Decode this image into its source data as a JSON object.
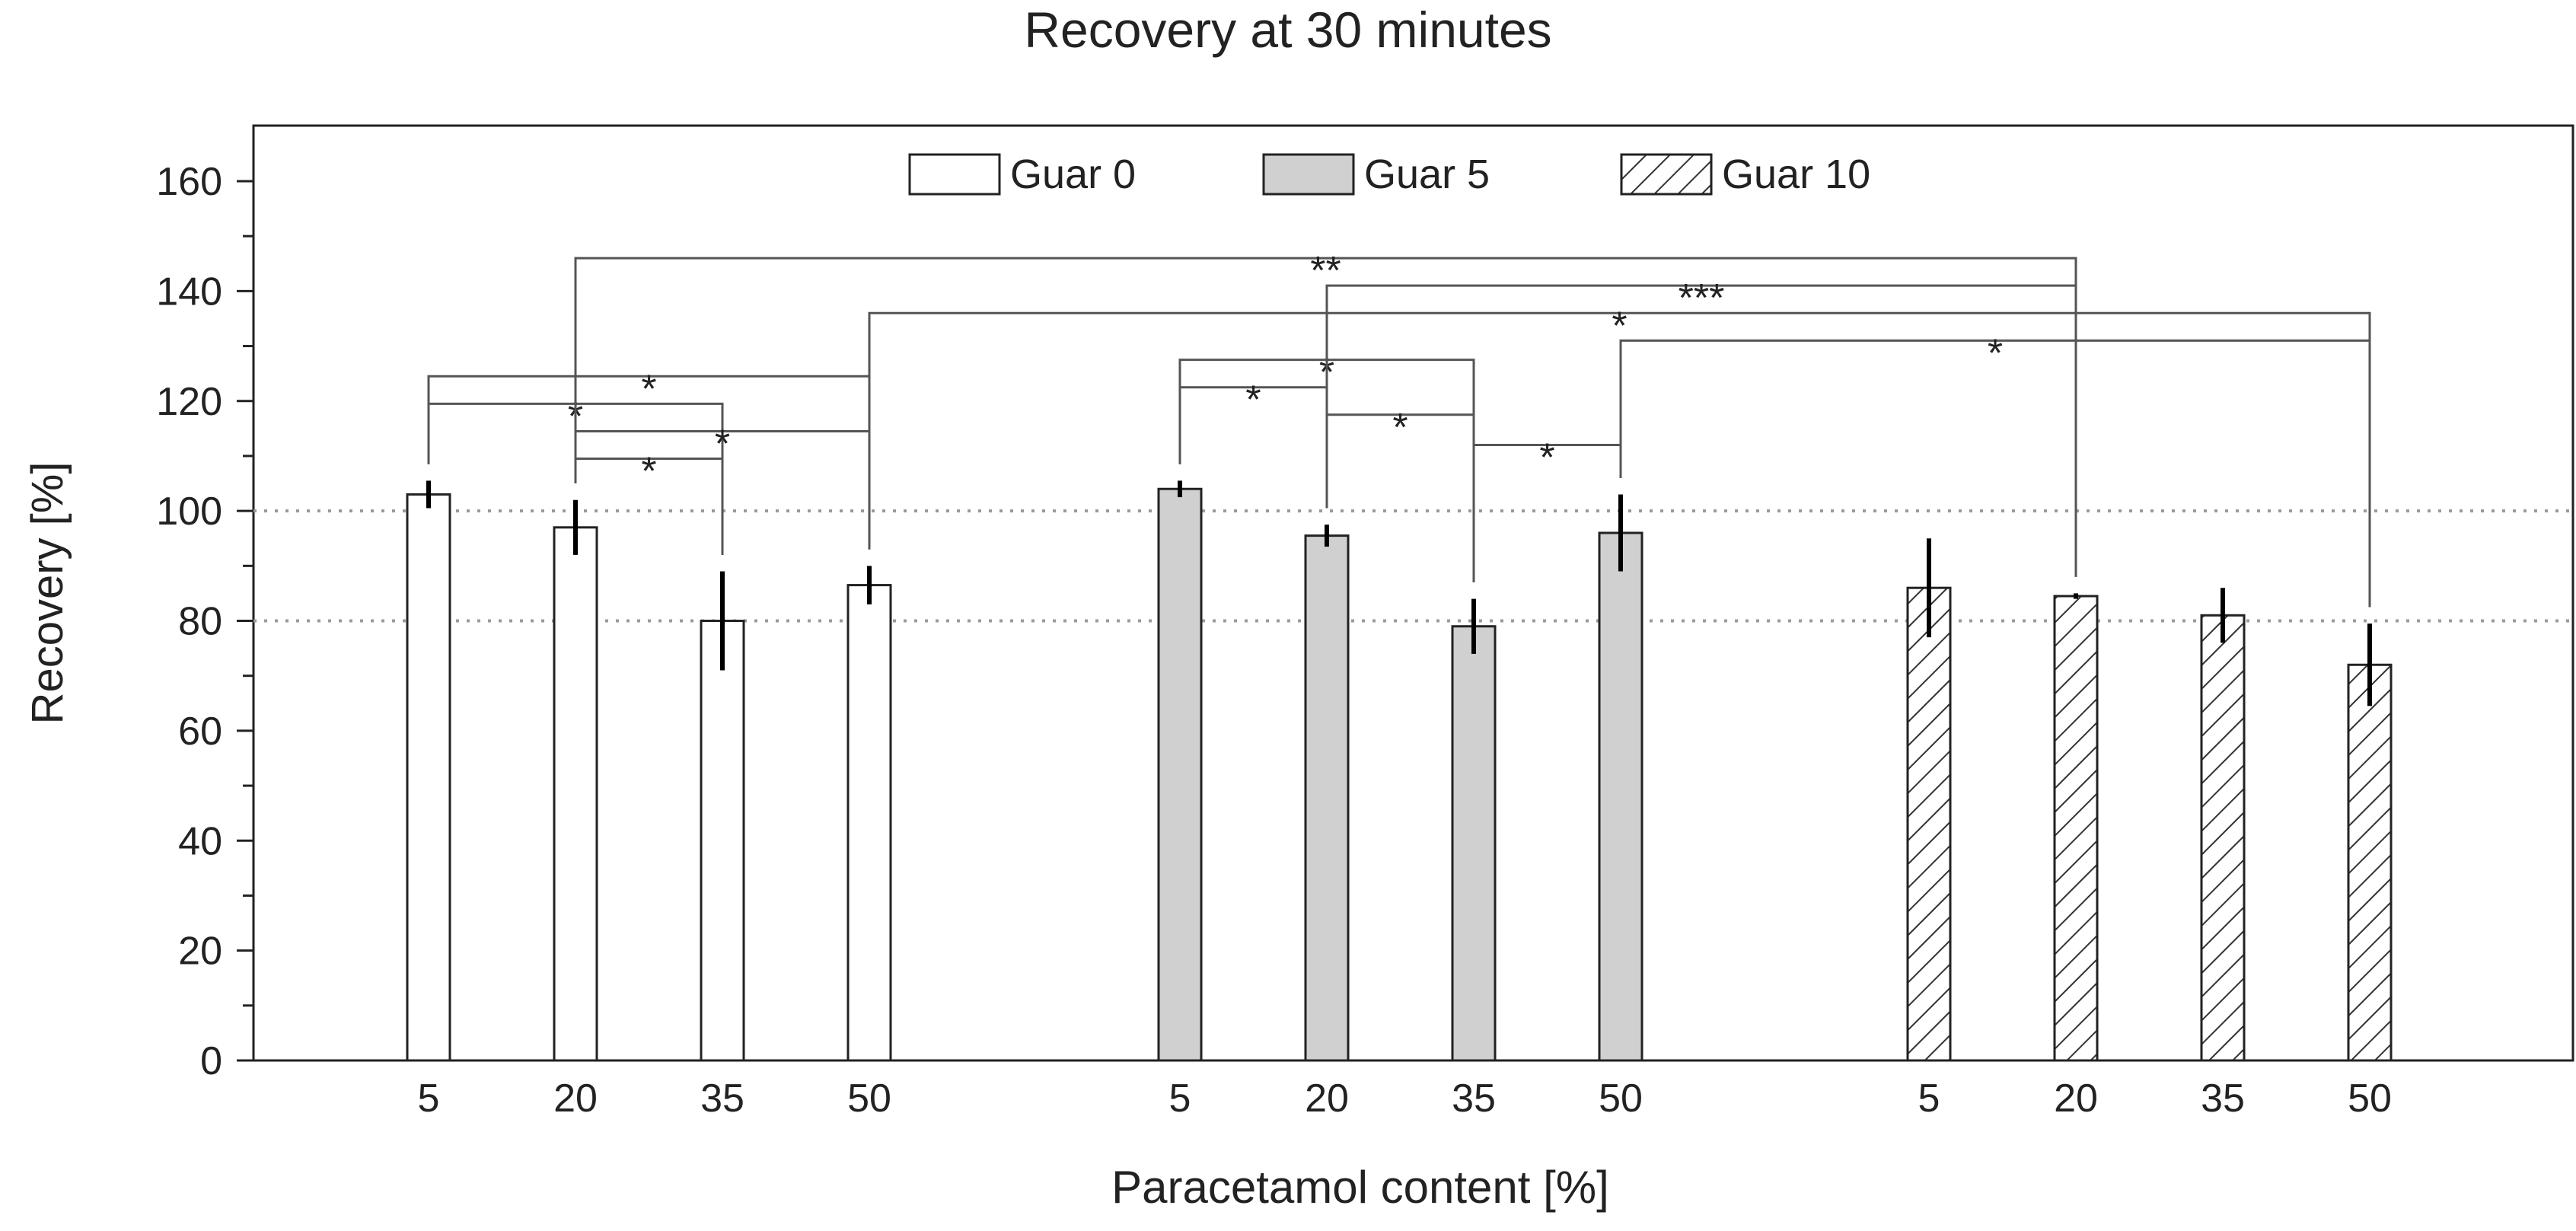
{
  "chart_data": {
    "type": "bar",
    "title": "Recovery at 30 minutes",
    "xlabel": "Paracetamol content [%]",
    "ylabel": "Recovery [%]",
    "ylim": [
      0,
      170
    ],
    "yticks": [
      0,
      20,
      40,
      60,
      80,
      100,
      120,
      140,
      160
    ],
    "reference_lines": [
      80,
      100
    ],
    "categories": [
      "5",
      "20",
      "35",
      "50"
    ],
    "series": [
      {
        "name": "Guar 0",
        "fill": "white",
        "values": [
          103,
          97,
          80,
          86.5
        ],
        "errors": [
          2.5,
          5,
          9,
          3.5
        ]
      },
      {
        "name": "Guar 5",
        "fill": "grey",
        "values": [
          104,
          95.5,
          79,
          96
        ],
        "errors": [
          1.5,
          2,
          5,
          7
        ]
      },
      {
        "name": "Guar 10",
        "fill": "hatch",
        "values": [
          86,
          84.5,
          81,
          72
        ],
        "errors": [
          9,
          0.5,
          5,
          7.5
        ]
      }
    ],
    "significance": [
      {
        "from": [
          0,
          0
        ],
        "to": [
          0,
          2
        ],
        "level": 119.5,
        "label": "*"
      },
      {
        "from": [
          0,
          0
        ],
        "to": [
          0,
          3
        ],
        "level": 124.5,
        "label": "*"
      },
      {
        "from": [
          0,
          1
        ],
        "to": [
          0,
          2
        ],
        "level": 109.5,
        "label": "*"
      },
      {
        "from": [
          0,
          1
        ],
        "to": [
          0,
          3
        ],
        "level": 114.5,
        "label": "*"
      },
      {
        "from": [
          0,
          1
        ],
        "to": [
          2,
          1
        ],
        "level": 146,
        "label": "**"
      },
      {
        "from": [
          0,
          3
        ],
        "to": [
          2,
          3
        ],
        "level": 136,
        "label": "*"
      },
      {
        "from": [
          1,
          0
        ],
        "to": [
          1,
          1
        ],
        "level": 122.5,
        "label": "*"
      },
      {
        "from": [
          1,
          0
        ],
        "to": [
          1,
          2
        ],
        "level": 127.5,
        "label": "*"
      },
      {
        "from": [
          1,
          1
        ],
        "to": [
          1,
          2
        ],
        "level": 117.5,
        "label": "*"
      },
      {
        "from": [
          1,
          1
        ],
        "to": [
          2,
          1
        ],
        "level": 141,
        "label": "***"
      },
      {
        "from": [
          1,
          2
        ],
        "to": [
          1,
          3
        ],
        "level": 112,
        "label": "*"
      },
      {
        "from": [
          1,
          3
        ],
        "to": [
          2,
          3
        ],
        "level": 131,
        "label": "*"
      }
    ]
  },
  "colors": {
    "bar_grey": "#d0d0d0",
    "bar_white": "#ffffff",
    "axis": "#222222",
    "bracket": "#555555",
    "reference": "#9a9a9a"
  }
}
